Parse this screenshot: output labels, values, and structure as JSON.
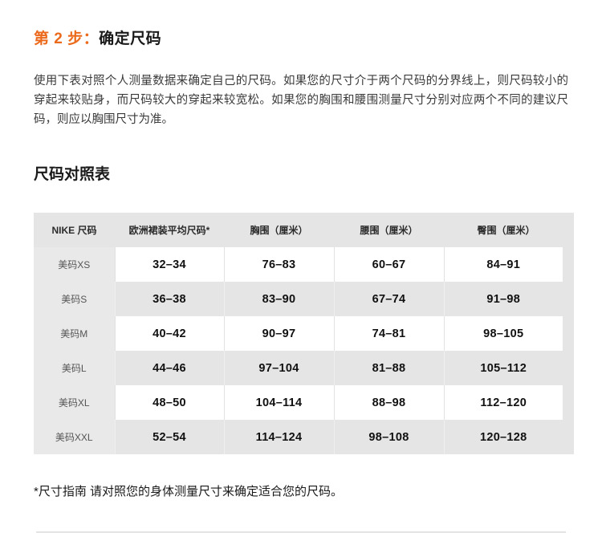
{
  "page": {
    "step_title_prefix": "第 2 步：",
    "step_title_text": "确定尺码",
    "intro": "使用下表对照个人测量数据来确定自己的尺码。如果您的尺寸介于两个尺码的分界线上，则尺码较小的穿起来较贴身，而尺码较大的穿起来较宽松。如果您的胸围和腰围测量尺寸分别对应两个不同的建议尺码，则应以胸围尺寸为准。",
    "section_title": "尺码对照表",
    "footnote": "*尺寸指南 请对照您的身体测量尺寸来确定适合您的尺码。"
  },
  "size_table": {
    "headers": [
      "NIKE 尺码",
      "欧洲裙装平均尺码*",
      "胸围（厘米）",
      "腰围（厘米）",
      "臀围（厘米）"
    ],
    "rows": [
      {
        "label": "美码XS",
        "values": [
          "32–34",
          "76–83",
          "60–67",
          "84–91"
        ]
      },
      {
        "label": "美码S",
        "values": [
          "36–38",
          "83–90",
          "67–74",
          "91–98"
        ]
      },
      {
        "label": "美码M",
        "values": [
          "40–42",
          "90–97",
          "74–81",
          "98–105"
        ]
      },
      {
        "label": "美码L",
        "values": [
          "44–46",
          "97–104",
          "81–88",
          "105–112"
        ]
      },
      {
        "label": "美码XL",
        "values": [
          "48–50",
          "104–114",
          "88–98",
          "112–120"
        ]
      },
      {
        "label": "美码XXL",
        "values": [
          "52–54",
          "114–124",
          "98–108",
          "120–128"
        ]
      }
    ]
  },
  "colors": {
    "accent_orange": "#ec6a1c",
    "table_gray": "#e5e5e5",
    "row_white": "#ffffff"
  }
}
